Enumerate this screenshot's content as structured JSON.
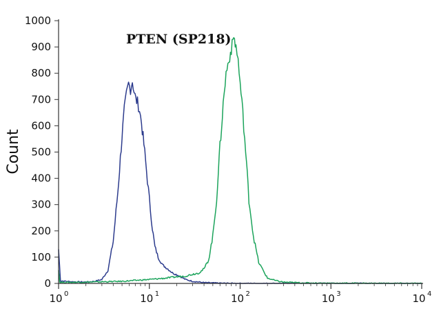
{
  "chart_data": {
    "type": "line",
    "title": "PTEN (SP218)",
    "xlabel": "",
    "ylabel": "Count",
    "x_scale": "log",
    "xlim": [
      1,
      10000
    ],
    "ylim": [
      0,
      1000
    ],
    "x_ticks": [
      {
        "value": 1,
        "base": "10",
        "exp": "0"
      },
      {
        "value": 10,
        "base": "10",
        "exp": "1"
      },
      {
        "value": 100,
        "base": "10",
        "exp": "2"
      },
      {
        "value": 1000,
        "base": "10",
        "exp": "3"
      },
      {
        "value": 10000,
        "base": "10",
        "exp": "4"
      }
    ],
    "y_ticks": [
      "0",
      "100",
      "200",
      "300",
      "400",
      "500",
      "600",
      "700",
      "800",
      "900",
      "1000"
    ],
    "grid": false,
    "legend": "none",
    "series": [
      {
        "color": "#2b3a8c",
        "x": [
          1,
          1.05,
          1.2,
          1.5,
          2,
          2.5,
          3,
          3.5,
          4,
          4.5,
          5,
          5.3,
          5.6,
          5.9,
          6.2,
          6.5,
          6.8,
          7.1,
          7.4,
          7.8,
          8.2,
          8.7,
          9.3,
          10,
          10.8,
          11.5,
          12.5,
          14,
          16,
          18,
          21,
          25,
          30,
          40,
          60,
          100,
          200,
          1000,
          10000
        ],
        "y": [
          130,
          10,
          8,
          6,
          5,
          8,
          15,
          50,
          160,
          350,
          560,
          660,
          720,
          760,
          740,
          770,
          730,
          700,
          690,
          660,
          610,
          530,
          430,
          320,
          210,
          140,
          100,
          70,
          55,
          40,
          30,
          15,
          8,
          3,
          1,
          0,
          0,
          0,
          0
        ]
      },
      {
        "color": "#1aa35a",
        "x": [
          1,
          1.03,
          1.1,
          2,
          5,
          10,
          15,
          20,
          25,
          30,
          35,
          40,
          45,
          50,
          55,
          60,
          65,
          70,
          75,
          80,
          85,
          90,
          95,
          100,
          107,
          115,
          125,
          140,
          160,
          200,
          250,
          300,
          500,
          1000,
          10000
        ],
        "y": [
          55,
          5,
          4,
          5,
          8,
          15,
          20,
          25,
          28,
          35,
          40,
          55,
          90,
          180,
          320,
          520,
          680,
          800,
          850,
          890,
          940,
          900,
          850,
          760,
          650,
          500,
          320,
          180,
          80,
          20,
          10,
          5,
          2,
          1,
          0
        ]
      }
    ]
  }
}
